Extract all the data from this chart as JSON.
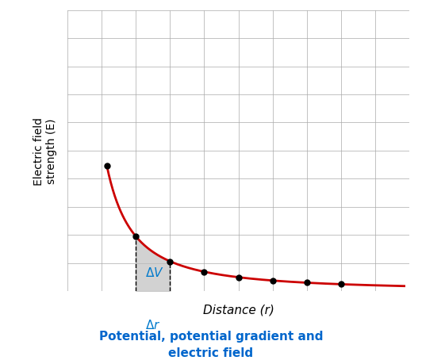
{
  "title_line1": "Potential, potential gradient and",
  "title_line2": "electric field",
  "title_color": "#0066cc",
  "xlabel": "Distance (r)",
  "ylabel": "Electric field\nstrength (E)",
  "curve_color": "#cc0000",
  "curve_linewidth": 2.0,
  "dot_color": "#000000",
  "dot_size": 5,
  "grid_color": "#aaaaaa",
  "background_color": "#ffffff",
  "shade_color": "#bbbbbb",
  "shade_alpha": 0.65,
  "dashed_color": "#000000",
  "annotation_color": "#007acc",
  "annotation_fontsize": 11,
  "curve_scale": 5.5,
  "curve_power": 1.5,
  "r_start": 1.15,
  "r0": 2.0,
  "r2": 3.0,
  "dot_r_values": [
    1.15,
    2.0,
    3.0,
    4.0,
    5.0,
    6.0,
    7.0,
    8.0
  ],
  "xlim": [
    0,
    10
  ],
  "ylim": [
    0,
    10
  ],
  "figsize": [
    5.32,
    4.6
  ],
  "dpi": 100
}
